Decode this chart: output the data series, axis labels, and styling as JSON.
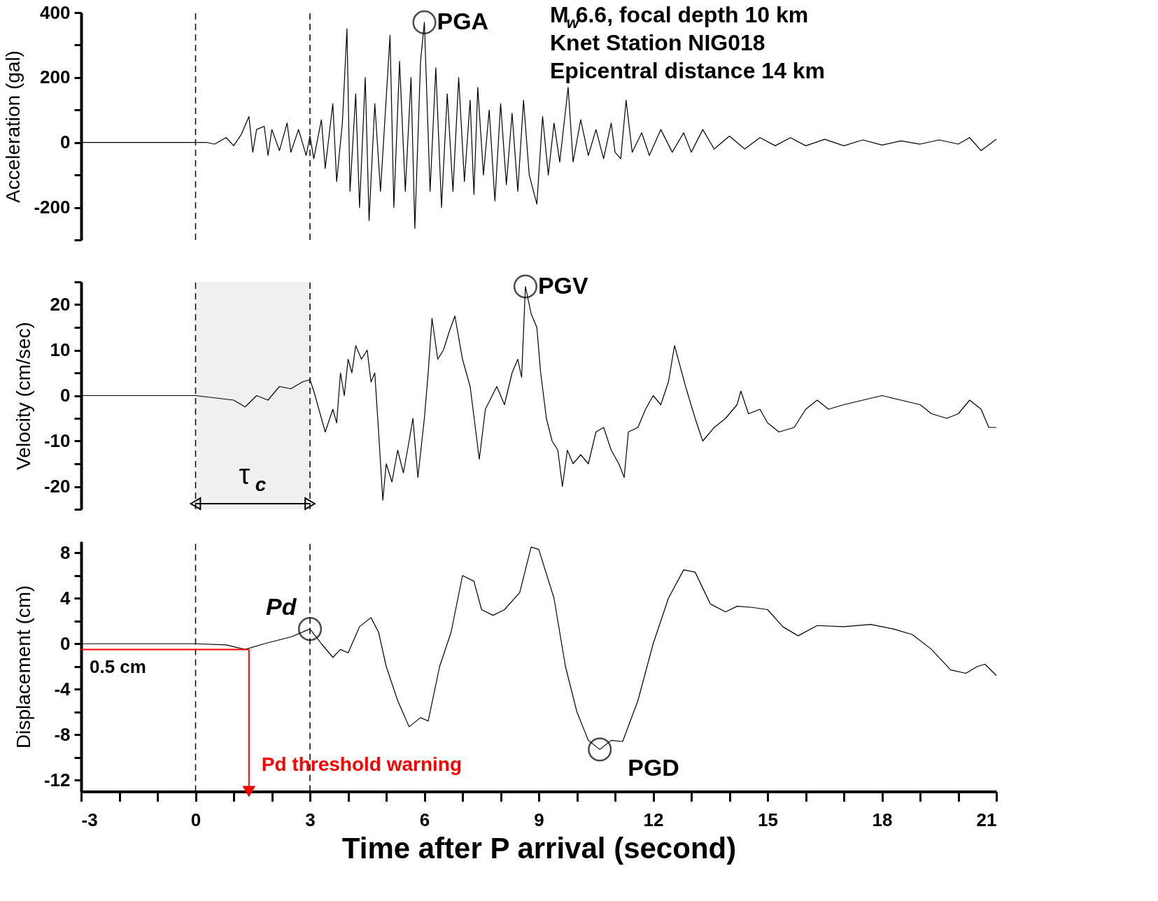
{
  "chart_data": [
    {
      "type": "line",
      "ylabel": "Acceleration (gal)",
      "xlim": [
        -3,
        21
      ],
      "ylim": [
        -300,
        400
      ],
      "tick_labels": "y",
      "grid": false,
      "yticks": [
        {
          "value": -300,
          "label": null
        },
        -200,
        {
          "value": -100,
          "label": null
        },
        0,
        {
          "value": 100,
          "label": null
        },
        200,
        {
          "value": 300,
          "label": null
        },
        400
      ],
      "series": [
        {
          "color": "#000000",
          "x": [
            -3,
            0,
            0.3,
            0.5,
            0.8,
            1.0,
            1.2,
            1.4,
            1.5,
            1.6,
            1.8,
            1.9,
            2.0,
            2.2,
            2.4,
            2.5,
            2.7,
            2.9,
            3.0,
            3.1,
            3.3,
            3.4,
            3.6,
            3.7,
            3.85,
            3.97,
            4.05,
            4.2,
            4.3,
            4.45,
            4.55,
            4.7,
            4.85,
            5.1,
            5.2,
            5.35,
            5.5,
            5.65,
            5.75,
            5.9,
            6.0,
            6.15,
            6.3,
            6.45,
            6.6,
            6.75,
            6.9,
            7.05,
            7.2,
            7.3,
            7.4,
            7.55,
            7.7,
            7.85,
            8.0,
            8.15,
            8.3,
            8.45,
            8.6,
            8.75,
            8.95,
            9.1,
            9.25,
            9.4,
            9.55,
            9.77,
            9.9,
            10.1,
            10.3,
            10.5,
            10.7,
            10.9,
            11.0,
            11.15,
            11.29,
            11.45,
            11.7,
            11.9,
            12.2,
            12.5,
            12.8,
            13.0,
            13.3,
            13.6,
            14.0,
            14.4,
            14.8,
            15.2,
            15.6,
            16.0,
            16.5,
            17.0,
            17.5,
            18.0,
            18.5,
            19.0,
            19.5,
            20.0,
            20.3,
            20.6,
            21
          ],
          "values": [
            0,
            0,
            0,
            -5,
            15,
            -10,
            25,
            80,
            -30,
            40,
            50,
            -40,
            40,
            -25,
            60,
            -30,
            40,
            -40,
            20,
            -50,
            70,
            -80,
            120,
            -120,
            60,
            350,
            -150,
            150,
            -200,
            200,
            -240,
            120,
            -150,
            330,
            -200,
            250,
            -150,
            200,
            -265,
            250,
            370,
            -150,
            230,
            -200,
            150,
            -150,
            200,
            -120,
            130,
            -160,
            170,
            -100,
            100,
            -180,
            120,
            -130,
            90,
            -150,
            130,
            -100,
            -190,
            80,
            -100,
            60,
            -60,
            170,
            -60,
            70,
            -40,
            40,
            -50,
            60,
            -30,
            -50,
            130,
            -30,
            30,
            -40,
            40,
            -30,
            30,
            -30,
            40,
            -20,
            20,
            -20,
            15,
            -10,
            15,
            -10,
            10,
            -10,
            8,
            -8,
            5,
            -5,
            8,
            -5,
            15,
            -25,
            10
          ]
        }
      ],
      "ref_lines": [
        {
          "axis": "x",
          "value": 0,
          "line_style": "dashed",
          "color": "#000000"
        },
        {
          "axis": "x",
          "value": 3,
          "line_style": "dashed",
          "color": "#000000"
        }
      ],
      "annotations": [
        "M$_{w}$6.6, focal depth 10 km",
        "Knet Station NIG018",
        "Epicentral distance 14 km",
        {
          "text": "PGA",
          "x": 6.0,
          "y": 370
        }
      ]
    },
    {
      "type": "line",
      "ylabel": "Velocity (cm/sec)",
      "xlim": [
        -3,
        21
      ],
      "ylim": [
        -25,
        25
      ],
      "tick_labels": "y",
      "grid": false,
      "yticks": [
        {
          "value": -25,
          "label": null
        },
        -20,
        {
          "value": -15,
          "label": null
        },
        -10,
        {
          "value": -5,
          "label": null
        },
        0,
        {
          "value": 5,
          "label": null
        },
        10,
        {
          "value": 15,
          "label": null
        },
        20,
        {
          "value": 25,
          "label": null
        }
      ],
      "series": [
        {
          "color": "#000000",
          "x": [
            -3,
            0,
            0.5,
            1.0,
            1.3,
            1.6,
            1.9,
            2.2,
            2.5,
            2.8,
            3.0,
            3.1,
            3.3,
            3.4,
            3.6,
            3.7,
            3.8,
            3.9,
            4.0,
            4.1,
            4.2,
            4.35,
            4.5,
            4.6,
            4.7,
            4.8,
            4.91,
            5.0,
            5.15,
            5.3,
            5.45,
            5.6,
            5.7,
            5.83,
            6.0,
            6.1,
            6.2,
            6.35,
            6.5,
            6.65,
            6.8,
            7.0,
            7.2,
            7.44,
            7.6,
            7.9,
            8.1,
            8.3,
            8.45,
            8.55,
            8.65,
            8.8,
            8.95,
            9.05,
            9.2,
            9.35,
            9.5,
            9.62,
            9.75,
            9.9,
            10.1,
            10.3,
            10.5,
            10.7,
            10.9,
            11.1,
            11.24,
            11.35,
            11.6,
            11.8,
            12.0,
            12.2,
            12.4,
            12.56,
            12.85,
            13.1,
            13.3,
            13.6,
            13.9,
            14.2,
            14.3,
            14.5,
            14.8,
            15.0,
            15.3,
            15.7,
            16.0,
            16.3,
            16.6,
            17.0,
            17.5,
            18.0,
            18.5,
            19.0,
            19.3,
            19.7,
            20.0,
            20.3,
            20.6,
            20.8,
            21
          ],
          "values": [
            0,
            0,
            -0.5,
            -1,
            -2.5,
            0,
            -1,
            2,
            1.5,
            3,
            3.5,
            1,
            -5,
            -8,
            -3,
            -6,
            5,
            0,
            8,
            5,
            11,
            8,
            10,
            3,
            5,
            -8,
            -23,
            -15,
            -19,
            -12,
            -17,
            -10,
            -5,
            -18,
            -5,
            5,
            17,
            8,
            10,
            14,
            17.5,
            8,
            2,
            -14,
            -3,
            2,
            -2,
            5,
            8,
            4,
            24,
            18,
            15,
            5,
            -5,
            -10,
            -12,
            -20,
            -12,
            -15,
            -13,
            -15,
            -8,
            -7,
            -12,
            -15,
            -18,
            -8,
            -7,
            -3,
            0,
            -2,
            3,
            11,
            2,
            -5,
            -10,
            -7,
            -5,
            -2,
            1,
            -4,
            -3,
            -6,
            -8,
            -7,
            -3,
            -1,
            -3,
            -2,
            -1,
            0,
            -1,
            -2,
            -4,
            -5,
            -4,
            -1,
            -3,
            -7,
            -7
          ]
        }
      ],
      "ref_lines": [
        {
          "axis": "x",
          "value": 0,
          "line_style": "dashed",
          "color": "#000000"
        },
        {
          "axis": "x",
          "value": 3,
          "line_style": "dashed",
          "color": "#000000"
        }
      ],
      "bands": [
        {
          "axis": "x",
          "from": 0,
          "to": 3,
          "label": "τ$_{c}$",
          "color": "#f0f0f0"
        }
      ],
      "annotations": [
        {
          "text": "PGV",
          "x": 8.65,
          "y": 24
        }
      ]
    },
    {
      "type": "line",
      "ylabel": "Displacement (cm)",
      "xlabel": "Time after P arrival (second)",
      "xlim": [
        -3,
        21
      ],
      "ylim": [
        -13,
        9
      ],
      "grid": false,
      "xticks": [
        -3,
        {
          "value": -2,
          "label": null
        },
        {
          "value": -1,
          "label": null
        },
        0,
        {
          "value": 1,
          "label": null
        },
        {
          "value": 2,
          "label": null
        },
        3,
        {
          "value": 4,
          "label": null
        },
        {
          "value": 5,
          "label": null
        },
        6,
        {
          "value": 7,
          "label": null
        },
        {
          "value": 8,
          "label": null
        },
        9,
        {
          "value": 10,
          "label": null
        },
        {
          "value": 11,
          "label": null
        },
        12,
        {
          "value": 13,
          "label": null
        },
        {
          "value": 14,
          "label": null
        },
        15,
        {
          "value": 16,
          "label": null
        },
        {
          "value": 17,
          "label": null
        },
        18,
        {
          "value": 19,
          "label": null
        },
        {
          "value": 20,
          "label": null
        },
        21
      ],
      "yticks": [
        -12,
        {
          "value": -10,
          "label": null
        },
        -8,
        {
          "value": -6,
          "label": null
        },
        -4,
        {
          "value": -2,
          "label": null
        },
        0,
        {
          "value": 2,
          "label": null
        },
        4,
        {
          "value": 6,
          "label": null
        },
        8
      ],
      "series": [
        {
          "color": "#000000",
          "x": [
            -3,
            0,
            0.8,
            1.3,
            1.8,
            2.5,
            3.0,
            3.3,
            3.6,
            3.8,
            4.0,
            4.3,
            4.6,
            4.8,
            5.0,
            5.3,
            5.6,
            5.9,
            6.1,
            6.4,
            6.7,
            7.0,
            7.3,
            7.5,
            7.8,
            8.1,
            8.5,
            8.8,
            9.0,
            9.4,
            9.7,
            10.0,
            10.3,
            10.6,
            10.9,
            11.2,
            11.6,
            12.0,
            12.4,
            12.8,
            13.1,
            13.5,
            13.9,
            14.2,
            14.6,
            15.0,
            15.4,
            15.8,
            16.3,
            17.0,
            17.7,
            18.3,
            18.8,
            19.3,
            19.8,
            20.2,
            20.5,
            20.7,
            21
          ],
          "values": [
            0,
            0,
            -0.1,
            -0.5,
            0,
            0.6,
            1.3,
            0,
            -1.2,
            -0.5,
            -0.8,
            1.5,
            2.3,
            1,
            -2,
            -5,
            -7.3,
            -6.5,
            -6.8,
            -2,
            1,
            6,
            5.5,
            3,
            2.5,
            3,
            4.5,
            8.5,
            8.3,
            4,
            -2,
            -6,
            -8.5,
            -9.3,
            -8.5,
            -8.6,
            -5,
            0,
            4,
            6.5,
            6.3,
            3.5,
            2.8,
            3.3,
            3.2,
            3,
            1.5,
            0.7,
            1.6,
            1.5,
            1.7,
            1.3,
            0.8,
            -0.5,
            -2.3,
            -2.6,
            -2,
            -1.8,
            -2.8
          ]
        }
      ],
      "ref_lines": [
        {
          "axis": "x",
          "value": 0,
          "line_style": "dashed",
          "color": "#000000"
        },
        {
          "axis": "x",
          "value": 3,
          "line_style": "dashed",
          "color": "#000000"
        },
        {
          "axis": "y",
          "value": -0.5,
          "label": "0.5 cm",
          "line_style": "solid",
          "color": "#ff0000"
        },
        {
          "axis": "x",
          "value": 1.4,
          "label": "Pd threshold warning",
          "line_style": "solid",
          "color": "#ff0000"
        }
      ],
      "annotations": [
        {
          "text": "Pd",
          "x": 3.0,
          "y": 1.3
        },
        {
          "text": "PGD",
          "x": 10.6,
          "y": -9.3
        }
      ]
    }
  ]
}
